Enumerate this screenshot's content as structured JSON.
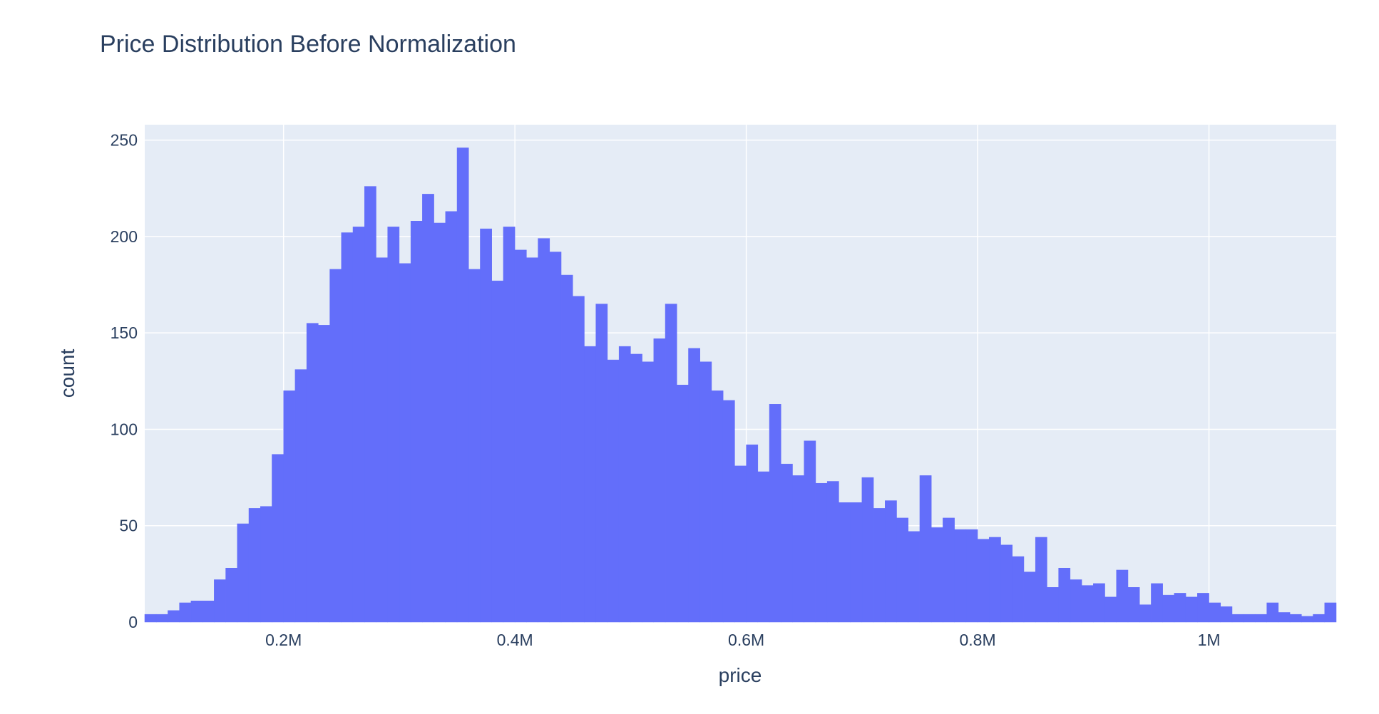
{
  "chart_data": {
    "type": "bar",
    "title": "Price Distribution Before Normalization",
    "xlabel": "price",
    "ylabel": "count",
    "xlim": [
      80000,
      1110000
    ],
    "ylim": [
      0,
      258
    ],
    "bin_width": 10000,
    "x_ticks": [
      {
        "value": 200000,
        "label": "0.2M"
      },
      {
        "value": 400000,
        "label": "0.4M"
      },
      {
        "value": 600000,
        "label": "0.6M"
      },
      {
        "value": 800000,
        "label": "0.8M"
      },
      {
        "value": 1000000,
        "label": "1M"
      }
    ],
    "y_ticks": [
      {
        "value": 0,
        "label": "0"
      },
      {
        "value": 50,
        "label": "50"
      },
      {
        "value": 100,
        "label": "100"
      },
      {
        "value": 150,
        "label": "150"
      },
      {
        "value": 200,
        "label": "200"
      },
      {
        "value": 250,
        "label": "250"
      }
    ],
    "grid": true,
    "series": [
      {
        "bar_color": "#636efa",
        "bin_starts": [
          80000,
          90000,
          100000,
          110000,
          120000,
          130000,
          140000,
          150000,
          160000,
          170000,
          180000,
          190000,
          200000,
          210000,
          220000,
          230000,
          240000,
          250000,
          260000,
          270000,
          280000,
          290000,
          300000,
          310000,
          320000,
          330000,
          340000,
          350000,
          360000,
          370000,
          380000,
          390000,
          400000,
          410000,
          420000,
          430000,
          440000,
          450000,
          460000,
          470000,
          480000,
          490000,
          500000,
          510000,
          520000,
          530000,
          540000,
          550000,
          560000,
          570000,
          580000,
          590000,
          600000,
          610000,
          620000,
          630000,
          640000,
          650000,
          660000,
          670000,
          680000,
          690000,
          700000,
          710000,
          720000,
          730000,
          740000,
          750000,
          760000,
          770000,
          780000,
          790000,
          800000,
          810000,
          820000,
          830000,
          840000,
          850000,
          860000,
          870000,
          880000,
          890000,
          900000,
          910000,
          920000,
          930000,
          940000,
          950000,
          960000,
          970000,
          980000,
          990000,
          1000000,
          1010000,
          1020000,
          1030000,
          1040000,
          1050000,
          1060000,
          1070000,
          1080000,
          1090000,
          1100000
        ],
        "values": [
          4,
          4,
          6,
          10,
          11,
          11,
          22,
          28,
          51,
          59,
          60,
          87,
          120,
          131,
          155,
          154,
          183,
          202,
          205,
          226,
          189,
          205,
          186,
          208,
          222,
          207,
          213,
          246,
          183,
          204,
          177,
          205,
          193,
          189,
          199,
          192,
          180,
          169,
          143,
          165,
          136,
          143,
          139,
          135,
          147,
          165,
          123,
          142,
          135,
          120,
          115,
          81,
          92,
          78,
          113,
          82,
          76,
          94,
          72,
          73,
          62,
          62,
          75,
          59,
          63,
          54,
          47,
          76,
          49,
          54,
          48,
          48,
          43,
          44,
          40,
          34,
          26,
          44,
          18,
          28,
          22,
          19,
          20,
          13,
          27,
          18,
          9,
          20,
          14,
          15,
          13,
          15,
          10,
          8,
          4,
          4,
          4,
          10,
          5,
          4,
          3,
          4,
          10
        ]
      }
    ]
  }
}
